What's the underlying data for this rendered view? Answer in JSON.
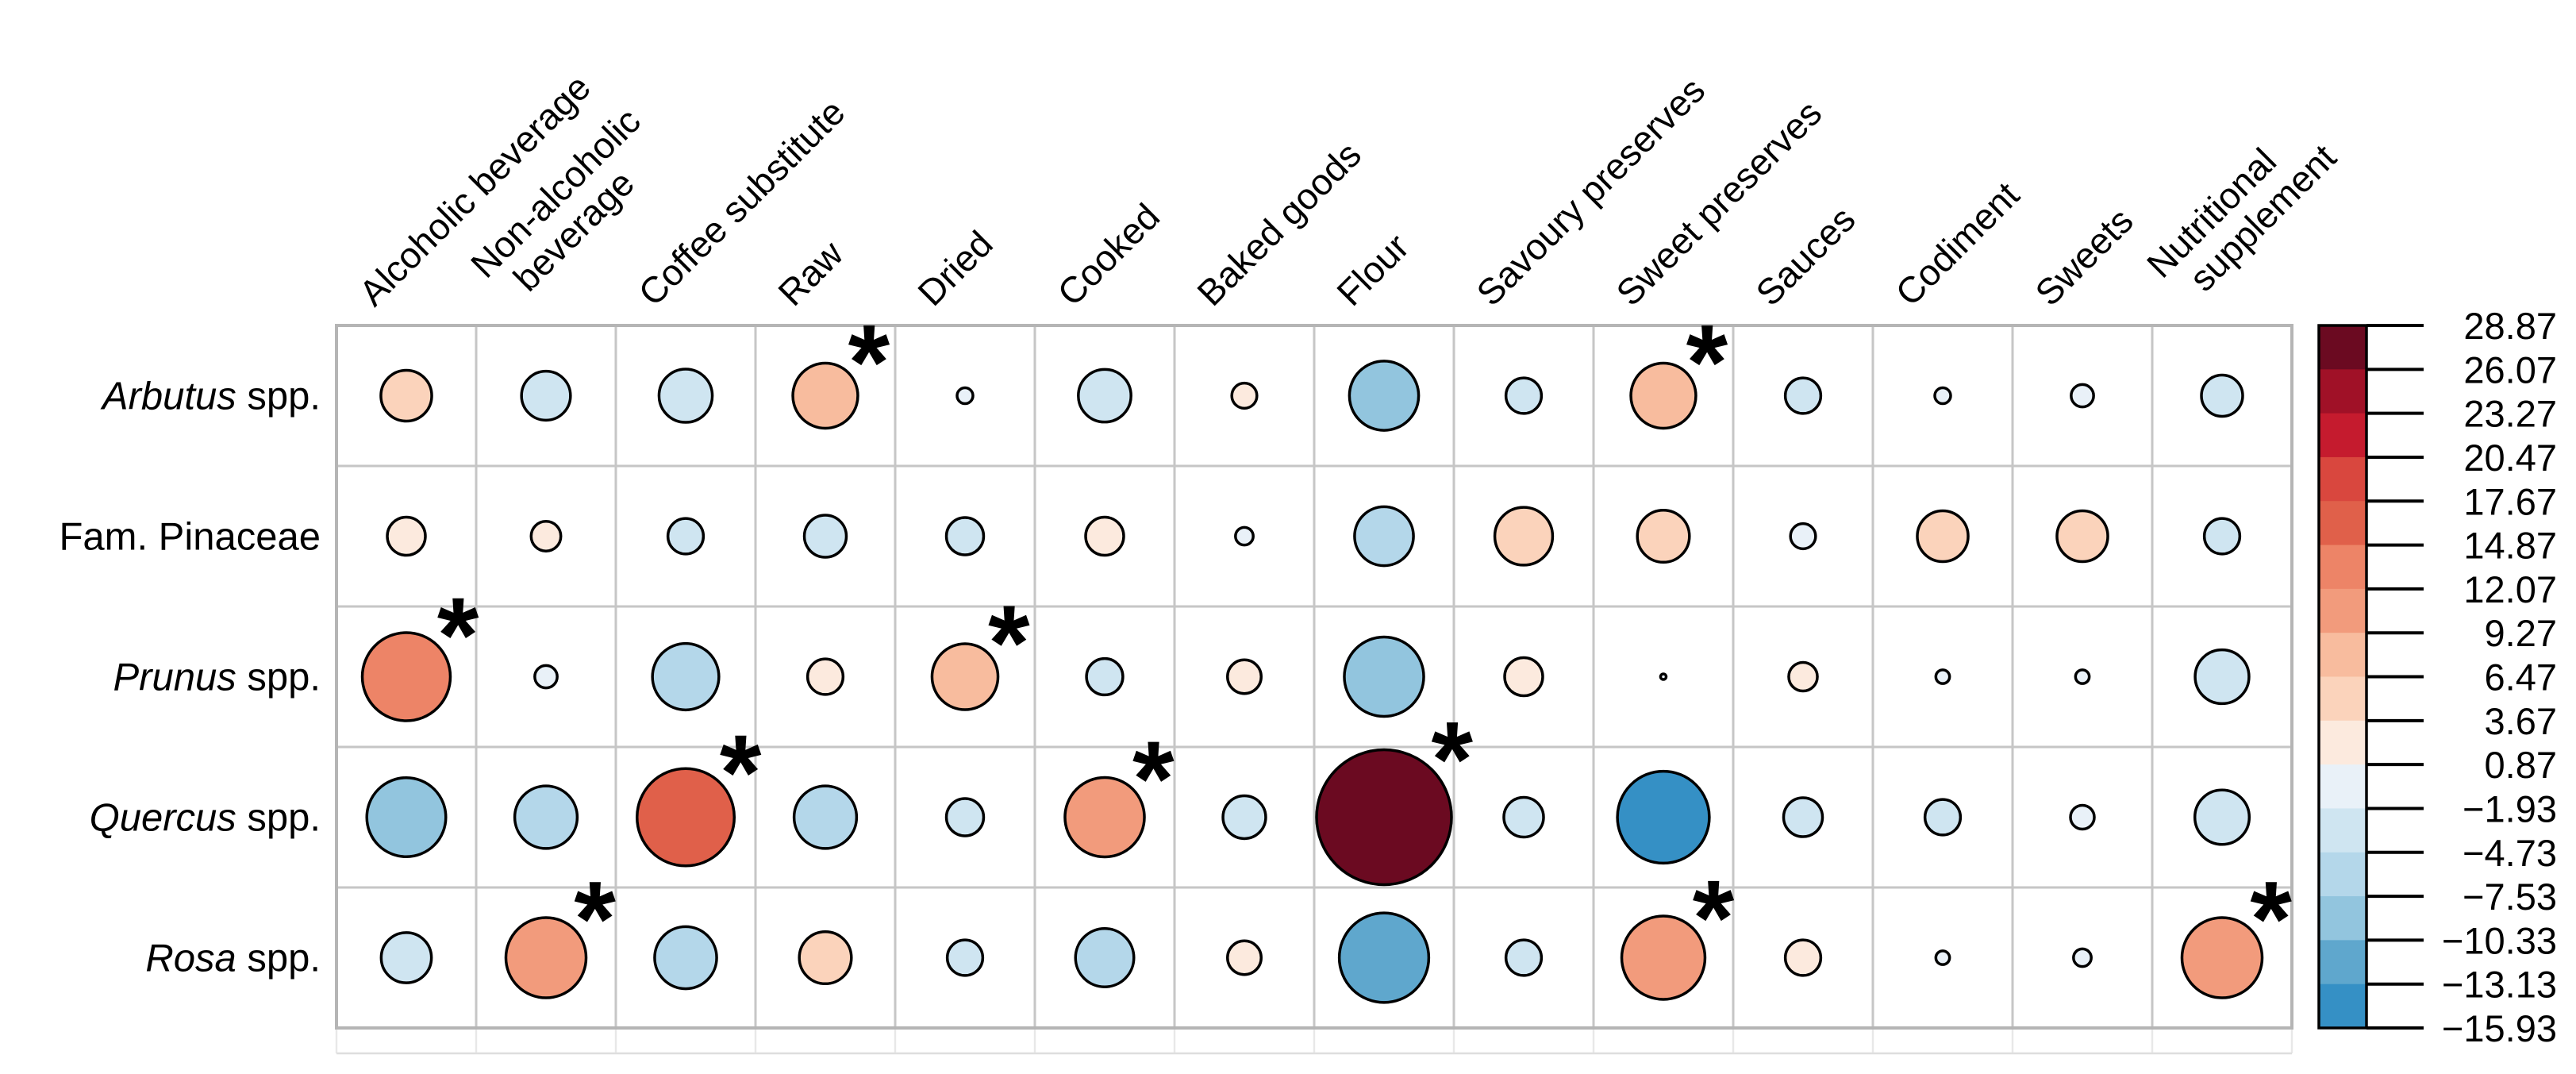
{
  "figure": {
    "background": "#ffffff"
  },
  "chart_data": {
    "type": "heatmap",
    "variant": "balloon-plot: circle size encodes |value|, circle color encodes signed value",
    "rows": [
      {
        "label": "Arbutus spp.",
        "italic": "Arbutus",
        "regular": " spp."
      },
      {
        "label": "Fam. Pinaceae",
        "italic": "",
        "regular": "Fam. Pinaceae"
      },
      {
        "label": "Prunus spp.",
        "italic": "Prunus",
        "regular": " spp."
      },
      {
        "label": "Quercus spp.",
        "italic": "Quercus",
        "regular": " spp."
      },
      {
        "label": "Rosa spp.",
        "italic": "Rosa",
        "regular": " spp."
      }
    ],
    "columns": [
      "Alcoholic beverage",
      "Non-alcoholic\nbeverage",
      "Coffee substitute",
      "Raw",
      "Dried",
      "Cooked",
      "Baked goods",
      "Flour",
      "Savoury preserves",
      "Sweet preserves",
      "Sauces",
      "Codiment",
      "Sweets",
      "Nutritional\nsupplement"
    ],
    "values": [
      [
        4.1,
        -3.8,
        -4.5,
        6.7,
        0.4,
        -4.4,
        1.0,
        -7.6,
        -2.0,
        6.7,
        -2.0,
        0.4,
        0.8,
        -2.7
      ],
      [
        2.3,
        1.4,
        -2.0,
        -2.8,
        -2.2,
        2.3,
        0.5,
        -5.5,
        5.3,
        4.3,
        -1.0,
        4.1,
        4.1,
        -2.0
      ],
      [
        12.3,
        -0.8,
        -7.0,
        2.0,
        6.9,
        -2.1,
        1.8,
        -10.0,
        2.3,
        0.05,
        1.3,
        0.3,
        0.3,
        -4.6
      ],
      [
        -9.9,
        -6.2,
        15.0,
        -6.2,
        -2.2,
        10.0,
        -2.9,
        28.87,
        -2.5,
        -13.4,
        -2.4,
        -2.0,
        -0.9,
        -4.7
      ],
      [
        -4.0,
        10.2,
        -6.1,
        4.3,
        -2.0,
        -5.4,
        1.8,
        -12.7,
        -2.0,
        11.0,
        2.0,
        0.3,
        0.5,
        10.2
      ]
    ],
    "significant": [
      [
        false,
        false,
        false,
        true,
        false,
        false,
        false,
        false,
        false,
        true,
        false,
        false,
        false,
        false
      ],
      [
        false,
        false,
        false,
        false,
        false,
        false,
        false,
        false,
        false,
        false,
        false,
        false,
        false,
        false
      ],
      [
        true,
        false,
        false,
        false,
        true,
        false,
        false,
        false,
        false,
        false,
        false,
        false,
        false,
        false
      ],
      [
        false,
        false,
        true,
        false,
        false,
        true,
        false,
        true,
        false,
        false,
        false,
        false,
        false,
        false
      ],
      [
        false,
        true,
        false,
        false,
        false,
        false,
        false,
        false,
        false,
        true,
        false,
        false,
        false,
        true
      ]
    ],
    "significance_marker": "*",
    "value_range": [
      -15.93,
      28.87
    ],
    "legend": {
      "position": "right",
      "bin_size": 2.8,
      "tick_labels": [
        "28.87",
        "26.07",
        "23.27",
        "20.47",
        "17.67",
        "14.87",
        "12.07",
        "9.27",
        "6.47",
        "3.67",
        "0.87",
        "−1.93",
        "−4.73",
        "−7.53",
        "−10.33",
        "−13.13",
        "−15.93"
      ],
      "colors_bottom_to_top": [
        "#3590c5",
        "#5fa7cd",
        "#92c5de",
        "#b4d7ea",
        "#cfe5f1",
        "#e9f1f8",
        "#fceade",
        "#fbd3bb",
        "#f8bc9e",
        "#f29b7c",
        "#ed8467",
        "#e0604a",
        "#d9473e",
        "#c51b2e",
        "#a01127",
        "#6b0a21"
      ]
    },
    "marker_outline_color": "#000000",
    "grid_line_color": "#c6c6c6",
    "grid_on": true
  }
}
